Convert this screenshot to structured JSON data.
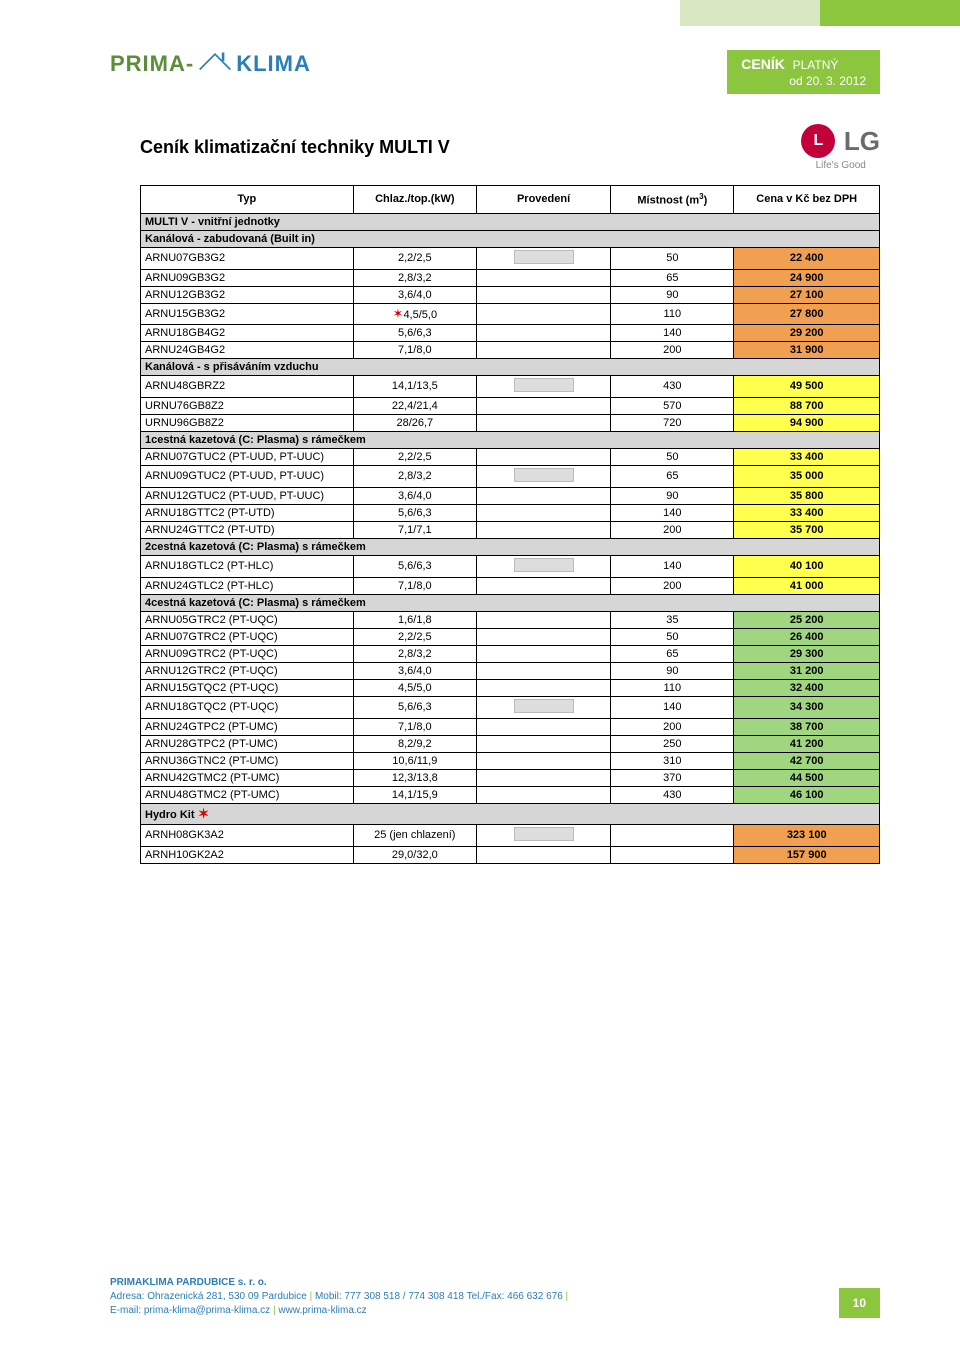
{
  "header": {
    "logo_part1": "PRIMA-",
    "logo_part2": "KLIMA",
    "cenik_label": "CENÍK",
    "cenik_sub1": "PLATNÝ",
    "cenik_sub2": "od 20. 3. 2012"
  },
  "title": "Ceník klimatizační techniky MULTI V",
  "lg": {
    "circle": "L",
    "text": "LG",
    "tag": "Life's Good"
  },
  "columns": {
    "typ": "Typ",
    "kw": "Chlaz./top.(kW)",
    "prov": "Provedení",
    "mist_prefix": "Místnost (m",
    "mist_sup": "3",
    "mist_suffix": ")",
    "cena": "Cena v Kč bez DPH"
  },
  "sections": [
    {
      "kind": "section",
      "label": "MULTI V - vnitřní jednotky"
    },
    {
      "kind": "section",
      "label": "Kanálová - zabudovaná (Built in)"
    },
    {
      "kind": "row",
      "typ": "ARNU07GB3G2",
      "kw": "2,2/2,5",
      "mist": "50",
      "cena": "22 400",
      "color": "orange",
      "img": true
    },
    {
      "kind": "row",
      "typ": "ARNU09GB3G2",
      "kw": "2,8/3,2",
      "mist": "65",
      "cena": "24 900",
      "color": "orange"
    },
    {
      "kind": "row",
      "typ": "ARNU12GB3G2",
      "kw": "3,6/4,0",
      "mist": "90",
      "cena": "27 100",
      "color": "orange"
    },
    {
      "kind": "row",
      "typ": "ARNU15GB3G2",
      "kw": "4,5/5,0",
      "mist": "110",
      "cena": "27 800",
      "color": "orange",
      "star": true
    },
    {
      "kind": "row",
      "typ": "ARNU18GB4G2",
      "kw": "5,6/6,3",
      "mist": "140",
      "cena": "29 200",
      "color": "orange"
    },
    {
      "kind": "row",
      "typ": "ARNU24GB4G2",
      "kw": "7,1/8,0",
      "mist": "200",
      "cena": "31 900",
      "color": "orange"
    },
    {
      "kind": "section",
      "label": "Kanálová - s přisáváním vzduchu"
    },
    {
      "kind": "row",
      "typ": "ARNU48GBRZ2",
      "kw": "14,1/13,5",
      "mist": "430",
      "cena": "49 500",
      "color": "yellow",
      "img": true
    },
    {
      "kind": "row",
      "typ": "URNU76GB8Z2",
      "kw": "22,4/21,4",
      "mist": "570",
      "cena": "88 700",
      "color": "yellow"
    },
    {
      "kind": "row",
      "typ": "URNU96GB8Z2",
      "kw": "28/26,7",
      "mist": "720",
      "cena": "94 900",
      "color": "yellow"
    },
    {
      "kind": "section",
      "label": "1cestná kazetová (C: Plasma) s  rámečkem"
    },
    {
      "kind": "row",
      "typ": "ARNU07GTUC2 (PT-UUD, PT-UUC)",
      "kw": "2,2/2,5",
      "mist": "50",
      "cena": "33 400",
      "color": "yellow"
    },
    {
      "kind": "row",
      "typ": "ARNU09GTUC2 (PT-UUD, PT-UUC)",
      "kw": "2,8/3,2",
      "mist": "65",
      "cena": "35 000",
      "color": "yellow",
      "img": true
    },
    {
      "kind": "row",
      "typ": "ARNU12GTUC2 (PT-UUD, PT-UUC)",
      "kw": "3,6/4,0",
      "mist": "90",
      "cena": "35 800",
      "color": "yellow"
    },
    {
      "kind": "row",
      "typ": "ARNU18GTTC2 (PT-UTD)",
      "kw": "5,6/6,3",
      "mist": "140",
      "cena": "33 400",
      "color": "yellow"
    },
    {
      "kind": "row",
      "typ": "ARNU24GTTC2 (PT-UTD)",
      "kw": "7,1/7,1",
      "mist": "200",
      "cena": "35 700",
      "color": "yellow"
    },
    {
      "kind": "section",
      "label": "2cestná kazetová (C: Plasma) s rámečkem"
    },
    {
      "kind": "row",
      "typ": "ARNU18GTLC2 (PT-HLC)",
      "kw": "5,6/6,3",
      "mist": "140",
      "cena": "40 100",
      "color": "yellow",
      "img": true
    },
    {
      "kind": "row",
      "typ": "ARNU24GTLC2 (PT-HLC)",
      "kw": "7,1/8,0",
      "mist": "200",
      "cena": "41 000",
      "color": "yellow"
    },
    {
      "kind": "section",
      "label": "4cestná kazetová (C: Plasma) s rámečkem"
    },
    {
      "kind": "row",
      "typ": "ARNU05GTRC2 (PT-UQC)",
      "kw": "1,6/1,8",
      "mist": "35",
      "cena": "25 200",
      "color": "green"
    },
    {
      "kind": "row",
      "typ": "ARNU07GTRC2 (PT-UQC)",
      "kw": "2,2/2,5",
      "mist": "50",
      "cena": "26 400",
      "color": "green"
    },
    {
      "kind": "row",
      "typ": "ARNU09GTRC2 (PT-UQC)",
      "kw": "2,8/3,2",
      "mist": "65",
      "cena": "29 300",
      "color": "green"
    },
    {
      "kind": "row",
      "typ": "ARNU12GTRC2 (PT-UQC)",
      "kw": "3,6/4,0",
      "mist": "90",
      "cena": "31 200",
      "color": "green"
    },
    {
      "kind": "row",
      "typ": "ARNU15GTQC2 (PT-UQC)",
      "kw": "4,5/5,0",
      "mist": "110",
      "cena": "32 400",
      "color": "green"
    },
    {
      "kind": "row",
      "typ": "ARNU18GTQC2 (PT-UQC)",
      "kw": "5,6/6,3",
      "mist": "140",
      "cena": "34 300",
      "color": "green",
      "img": true
    },
    {
      "kind": "row",
      "typ": "ARNU24GTPC2 (PT-UMC)",
      "kw": "7,1/8,0",
      "mist": "200",
      "cena": "38 700",
      "color": "green"
    },
    {
      "kind": "row",
      "typ": "ARNU28GTPC2 (PT-UMC)",
      "kw": "8,2/9,2",
      "mist": "250",
      "cena": "41 200",
      "color": "green"
    },
    {
      "kind": "row",
      "typ": "ARNU36GTNC2 (PT-UMC)",
      "kw": "10,6/11,9",
      "mist": "310",
      "cena": "42 700",
      "color": "green"
    },
    {
      "kind": "row",
      "typ": "ARNU42GTMC2 (PT-UMC)",
      "kw": "12,3/13,8",
      "mist": "370",
      "cena": "44 500",
      "color": "green"
    },
    {
      "kind": "row",
      "typ": "ARNU48GTMC2 (PT-UMC)",
      "kw": "14,1/15,9",
      "mist": "430",
      "cena": "46 100",
      "color": "green"
    },
    {
      "kind": "section",
      "label": "Hydro Kit",
      "star": true
    },
    {
      "kind": "row",
      "typ": "ARNH08GK3A2",
      "kw": "25 (jen chlazení)",
      "mist": "",
      "cena": "323 100",
      "color": "orange",
      "img": true
    },
    {
      "kind": "row",
      "typ": "ARNH10GK2A2",
      "kw": "29,0/32,0",
      "mist": "",
      "cena": "157 900",
      "color": "orange"
    }
  ],
  "footer": {
    "company": "PRIMAKLIMA PARDUBICE s. r. o.",
    "line2_a": "Adresa: Ohrazenická 281, 530 09 Pardubice",
    "line2_b": "Mobil: 777 308 518 / 774 308 418 Tel./Fax: 466 632 676",
    "line3_a": "E-mail: prima-klima@prima-klima.cz",
    "line3_b": "www.prima-klima.cz",
    "page": "10"
  },
  "colors": {
    "orange": "#f0a050",
    "yellow": "#ffff4d",
    "green": "#9fd67f",
    "brand_green": "#8cc63f",
    "brand_blue": "#2a7fb8"
  }
}
